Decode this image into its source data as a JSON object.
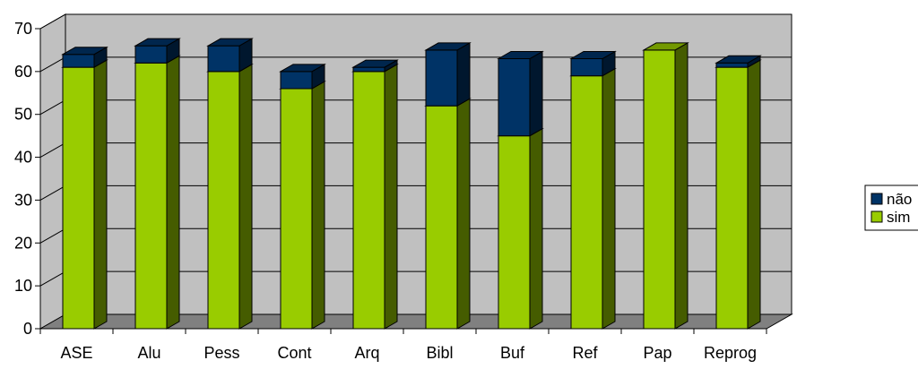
{
  "chart_data": {
    "type": "bar",
    "stacked": true,
    "three_d": true,
    "categories": [
      "ASE",
      "Alu",
      "Pess",
      "Cont",
      "Arq",
      "Bibl",
      "Buf",
      "Ref",
      "Pap",
      "Reprog"
    ],
    "series": [
      {
        "name": "sim",
        "color": "#99CC00",
        "values": [
          61,
          62,
          60,
          56,
          60,
          52,
          45,
          59,
          65,
          61
        ]
      },
      {
        "name": "não",
        "color": "#003366",
        "values": [
          3,
          4,
          6,
          4,
          1,
          13,
          18,
          4,
          0,
          1
        ]
      }
    ],
    "ylim": [
      0,
      70
    ],
    "yticks": [
      "0",
      "10",
      "20",
      "30",
      "40",
      "50",
      "60",
      "70"
    ],
    "grid": true,
    "legend_position": "right",
    "colors": {
      "wall": "#C0C0C0",
      "floor": "#808080",
      "grid": "#000000"
    }
  }
}
